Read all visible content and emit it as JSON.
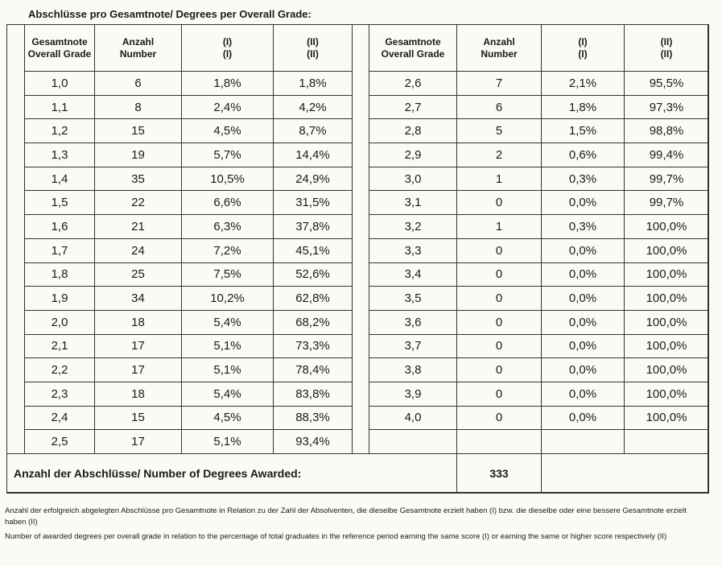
{
  "title": "Abschlüsse pro Gesamtnote/ Degrees per Overall Grade:",
  "headers": [
    [
      "Gesamtnote",
      "Overall Grade"
    ],
    [
      "Anzahl",
      "Number"
    ],
    [
      "(I)",
      "(I)"
    ],
    [
      "(II)",
      "(II)"
    ]
  ],
  "left_rows": [
    [
      "1,0",
      6,
      "1,8%",
      "1,8%"
    ],
    [
      "1,1",
      8,
      "2,4%",
      "4,2%"
    ],
    [
      "1,2",
      15,
      "4,5%",
      "8,7%"
    ],
    [
      "1,3",
      19,
      "5,7%",
      "14,4%"
    ],
    [
      "1,4",
      35,
      "10,5%",
      "24,9%"
    ],
    [
      "1,5",
      22,
      "6,6%",
      "31,5%"
    ],
    [
      "1,6",
      21,
      "6,3%",
      "37,8%"
    ],
    [
      "1,7",
      24,
      "7,2%",
      "45,1%"
    ],
    [
      "1,8",
      25,
      "7,5%",
      "52,6%"
    ],
    [
      "1,9",
      34,
      "10,2%",
      "62,8%"
    ],
    [
      "2,0",
      18,
      "5,4%",
      "68,2%"
    ],
    [
      "2,1",
      17,
      "5,1%",
      "73,3%"
    ],
    [
      "2,2",
      17,
      "5,1%",
      "78,4%"
    ],
    [
      "2,3",
      18,
      "5,4%",
      "83,8%"
    ],
    [
      "2,4",
      15,
      "4,5%",
      "88,3%"
    ],
    [
      "2,5",
      17,
      "5,1%",
      "93,4%"
    ]
  ],
  "right_rows": [
    [
      "2,6",
      7,
      "2,1%",
      "95,5%"
    ],
    [
      "2,7",
      6,
      "1,8%",
      "97,3%"
    ],
    [
      "2,8",
      5,
      "1,5%",
      "98,8%"
    ],
    [
      "2,9",
      2,
      "0,6%",
      "99,4%"
    ],
    [
      "3,0",
      1,
      "0,3%",
      "99,7%"
    ],
    [
      "3,1",
      0,
      "0,0%",
      "99,7%"
    ],
    [
      "3,2",
      1,
      "0,3%",
      "100,0%"
    ],
    [
      "3,3",
      0,
      "0,0%",
      "100,0%"
    ],
    [
      "3,4",
      0,
      "0,0%",
      "100,0%"
    ],
    [
      "3,5",
      0,
      "0,0%",
      "100,0%"
    ],
    [
      "3,6",
      0,
      "0,0%",
      "100,0%"
    ],
    [
      "3,7",
      0,
      "0,0%",
      "100,0%"
    ],
    [
      "3,8",
      0,
      "0,0%",
      "100,0%"
    ],
    [
      "3,9",
      0,
      "0,0%",
      "100,0%"
    ],
    [
      "4,0",
      0,
      "0,0%",
      "100,0%"
    ]
  ],
  "total_label": "Anzahl der Abschlüsse/ Number of Degrees Awarded:",
  "total": 333,
  "notes": [
    "Anzahl der erfolgreich abgelegten Abschlüsse pro Gesamtnote in Relation zu der Zahl der Absolventen, die dieselbe Gesamtnote erzielt haben (I) bzw. die dieselbe oder eine bessere Gesamtnote erzielt haben (II)",
    "Number of awarded degrees per overall grade in relation to the percentage of total graduates in the reference period earning the same score (I) or earning the same or higher score respectively (II)"
  ]
}
